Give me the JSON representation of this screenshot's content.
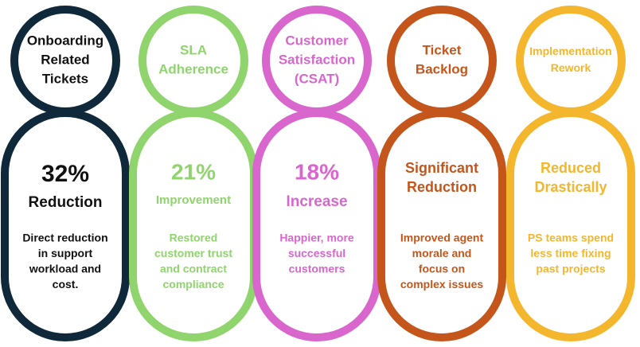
{
  "columns": [
    {
      "color": "#10293a",
      "title": [
        "Onboarding",
        "Related",
        "Tickets"
      ],
      "headline": [
        "32%",
        "Reduction"
      ],
      "description": [
        "Direct reduction",
        "in support",
        "workload and",
        "cost."
      ]
    },
    {
      "color": "#8fd46c",
      "title": [
        "SLA",
        "Adherence"
      ],
      "headline": [
        "21%",
        "Improvement"
      ],
      "description": [
        "Restored",
        "customer trust",
        "and contract",
        "compliance"
      ]
    },
    {
      "color": "#d866cc",
      "title": [
        "Customer",
        "Satisfaction",
        "(CSAT)"
      ],
      "headline": [
        "18%",
        "Increase"
      ],
      "description": [
        "Happier, more",
        "successful",
        "customers"
      ]
    },
    {
      "color": "#c4561c",
      "title": [
        "Ticket",
        "Backlog"
      ],
      "headline": [
        "Significant",
        "Reduction"
      ],
      "description": [
        "Improved agent",
        "morale and",
        "focus on",
        "complex issues"
      ]
    },
    {
      "color": "#f4b62c",
      "title": [
        "Implementation",
        "Rework"
      ],
      "headline": [
        "Reduced",
        "Drastically"
      ],
      "description": [
        "PS teams spend",
        "less time fixing",
        "past projects"
      ]
    }
  ]
}
